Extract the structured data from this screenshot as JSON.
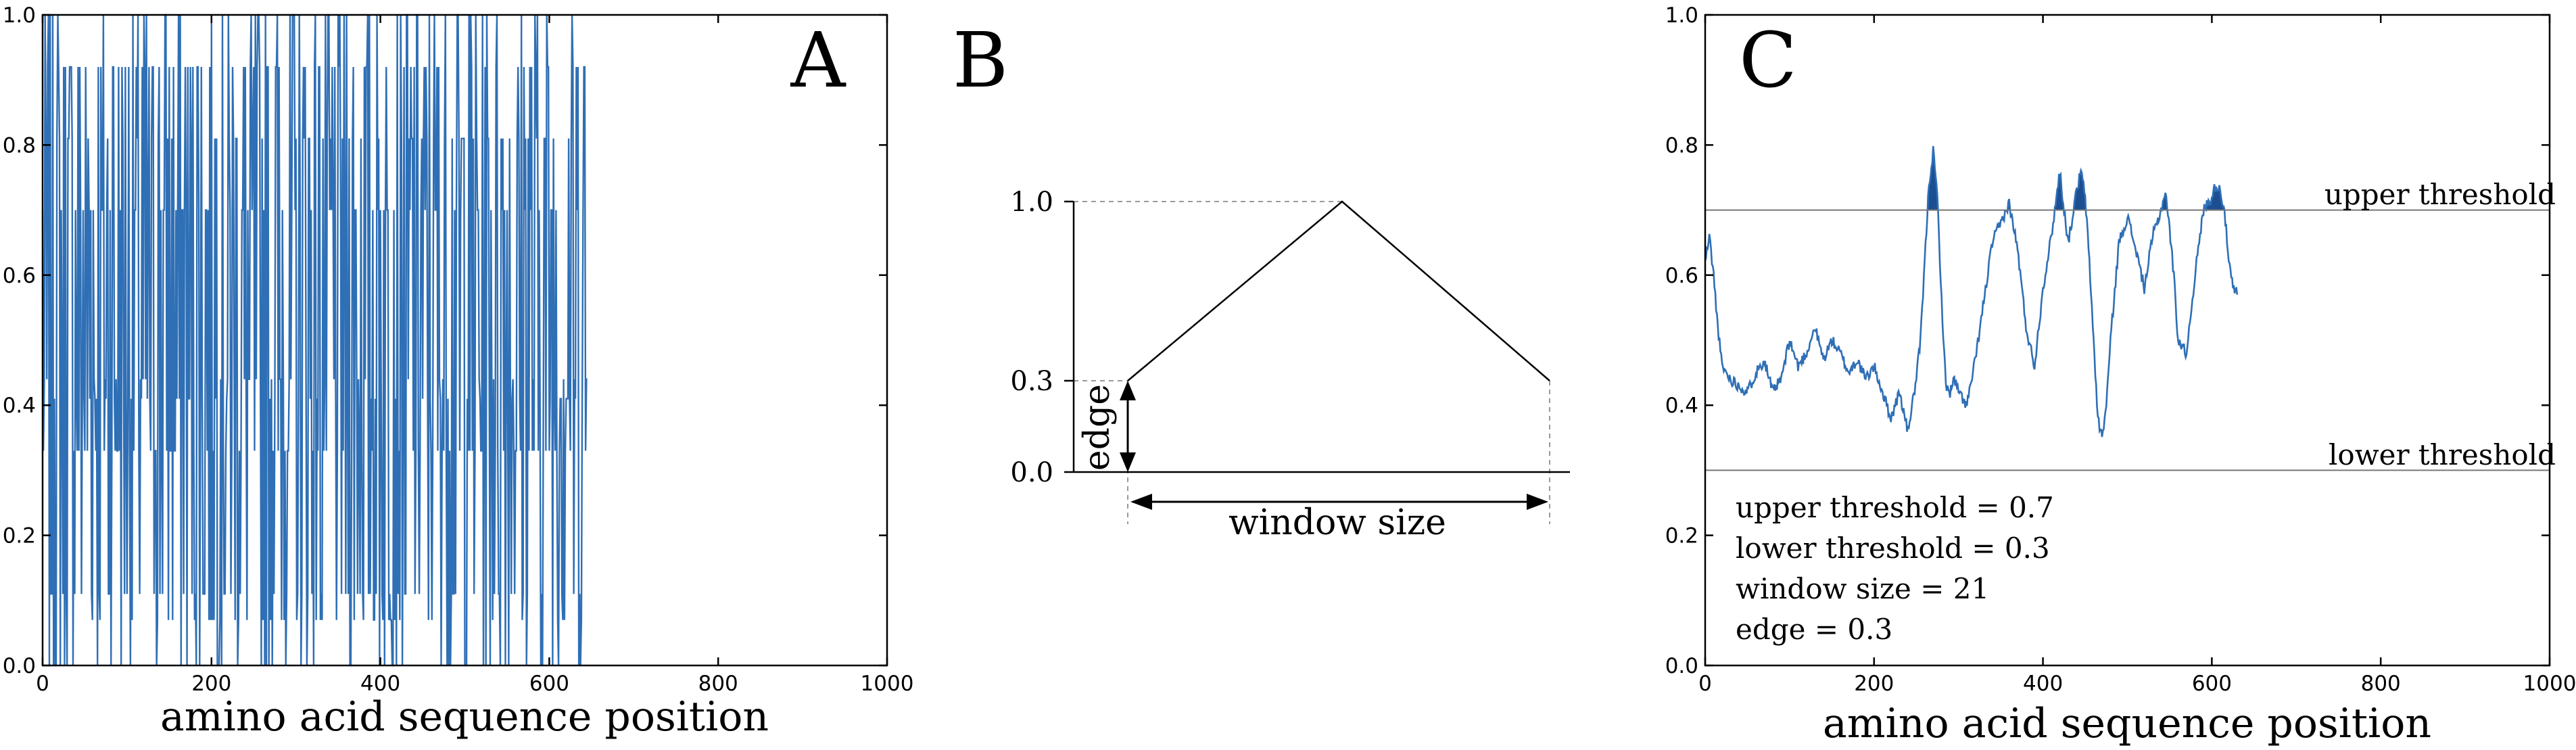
{
  "figure": {
    "panel_a": {
      "letter": "A"
    },
    "panel_b": {
      "letter": "B",
      "y_top_label": "1.0",
      "y_mid_label": "0.3",
      "y_zero_label": "0.0",
      "edge_label": "edge",
      "window_label": "window size"
    },
    "panel_c": {
      "letter": "C",
      "upper_label": "upper threshold",
      "lower_label": "lower threshold",
      "params": [
        "upper threshold = 0.7",
        "lower threshold = 0.3",
        "window size = 21",
        "edge = 0.3"
      ]
    }
  },
  "colors": {
    "series": "#2f6fb5",
    "fill": "#1c4f92",
    "axis": "#000000",
    "threshold": "#777777"
  },
  "chart_data": [
    {
      "type": "line",
      "panel": "A",
      "xlabel": "amino acid sequence position",
      "ylabel": "",
      "xlim": [
        0,
        1000
      ],
      "ylim": [
        0,
        1.0
      ],
      "xticks": [
        "0",
        "200",
        "400",
        "600",
        "800",
        "1000"
      ],
      "yticks": [
        "0.0",
        "0.2",
        "0.4",
        "0.6",
        "0.8",
        "1.0"
      ],
      "grid": false,
      "x_extent": [
        0,
        645
      ],
      "levels": [
        0.0,
        0.07,
        0.11,
        0.33,
        0.41,
        0.44,
        0.7,
        0.81,
        0.92,
        1.0
      ],
      "seed": 7
    },
    {
      "type": "line",
      "panel": "B",
      "description": "triangular window weighting function",
      "x": [
        0,
        0.5,
        1
      ],
      "y": [
        0.3,
        1.0,
        0.3
      ],
      "yticks": [
        "0.0",
        "0.3",
        "1.0"
      ]
    },
    {
      "type": "line",
      "panel": "C",
      "xlabel": "amino acid sequence position",
      "ylabel": "",
      "xlim": [
        0,
        1000
      ],
      "ylim": [
        0,
        1.0
      ],
      "xticks": [
        "0",
        "200",
        "400",
        "600",
        "800",
        "1000"
      ],
      "yticks": [
        "0.0",
        "0.2",
        "0.4",
        "0.6",
        "0.8",
        "1.0"
      ],
      "grid": false,
      "thresholds": {
        "upper": 0.7,
        "lower": 0.3
      },
      "x": [
        0,
        5,
        10,
        15,
        20,
        30,
        40,
        50,
        60,
        70,
        80,
        90,
        100,
        110,
        120,
        130,
        140,
        150,
        160,
        170,
        180,
        190,
        200,
        210,
        220,
        230,
        240,
        250,
        255,
        260,
        265,
        270,
        275,
        280,
        285,
        290,
        295,
        300,
        310,
        320,
        330,
        340,
        350,
        360,
        370,
        380,
        390,
        400,
        410,
        415,
        420,
        425,
        430,
        440,
        445,
        450,
        455,
        460,
        465,
        470,
        475,
        480,
        490,
        500,
        510,
        520,
        530,
        540,
        545,
        550,
        555,
        560,
        570,
        580,
        590,
        600,
        605,
        610,
        615,
        620,
        625,
        630
      ],
      "y": [
        0.62,
        0.66,
        0.6,
        0.52,
        0.46,
        0.44,
        0.43,
        0.42,
        0.45,
        0.47,
        0.42,
        0.44,
        0.5,
        0.46,
        0.48,
        0.52,
        0.47,
        0.5,
        0.48,
        0.45,
        0.47,
        0.44,
        0.46,
        0.42,
        0.38,
        0.42,
        0.36,
        0.44,
        0.5,
        0.62,
        0.74,
        0.79,
        0.72,
        0.56,
        0.43,
        0.42,
        0.44,
        0.42,
        0.4,
        0.47,
        0.56,
        0.65,
        0.68,
        0.71,
        0.64,
        0.52,
        0.46,
        0.58,
        0.66,
        0.71,
        0.76,
        0.7,
        0.65,
        0.73,
        0.76,
        0.72,
        0.62,
        0.5,
        0.38,
        0.35,
        0.4,
        0.5,
        0.65,
        0.69,
        0.64,
        0.58,
        0.66,
        0.7,
        0.73,
        0.67,
        0.6,
        0.5,
        0.48,
        0.6,
        0.7,
        0.72,
        0.74,
        0.73,
        0.7,
        0.62,
        0.58,
        0.57
      ]
    }
  ]
}
